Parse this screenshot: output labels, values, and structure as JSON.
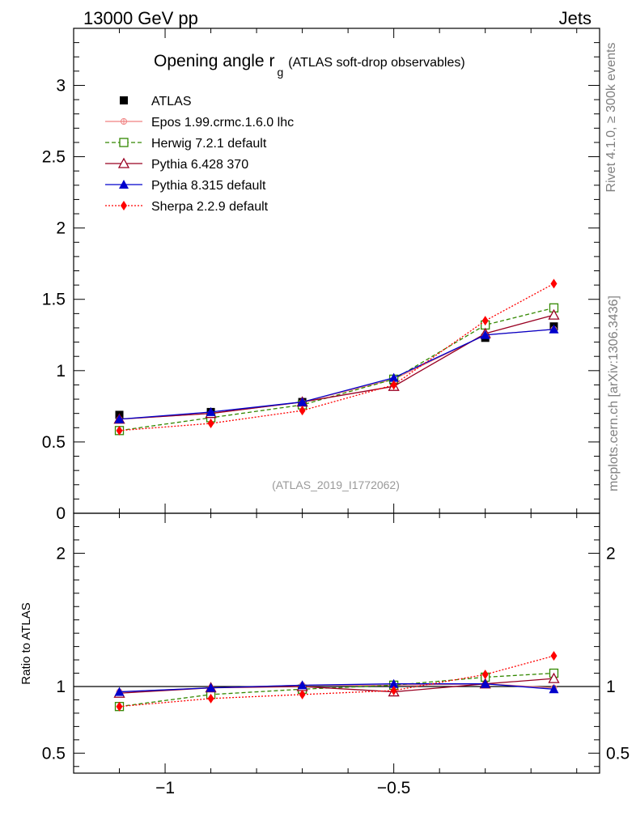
{
  "header": {
    "left": "13000 GeV pp",
    "right": "Jets"
  },
  "side_labels": {
    "rivet": "Rivet 4.1.0, ≥ 300k events",
    "mcplots": "mcplots.cern.ch [arXiv:1306.3436]"
  },
  "chart_data": [
    {
      "id": "main",
      "type": "line",
      "title": "Opening angle r",
      "title_sub": "g",
      "title_extra": "(ATLAS soft-drop observables)",
      "watermark": "(ATLAS_2019_I1772062)",
      "xlim": [
        -1.2,
        -0.05
      ],
      "ylim": [
        0,
        3.4
      ],
      "y_ticks": [
        {
          "value": 0,
          "label": "0"
        },
        {
          "value": 0.5,
          "label": "0.5"
        },
        {
          "value": 1,
          "label": "1"
        },
        {
          "value": 1.5,
          "label": "1.5"
        },
        {
          "value": 2,
          "label": "2"
        },
        {
          "value": 2.5,
          "label": "2.5"
        },
        {
          "value": 3,
          "label": "3"
        }
      ],
      "x": [
        -1.1,
        -0.9,
        -0.7,
        -0.5,
        -0.3,
        -0.15
      ],
      "series": [
        {
          "name": "ATLAS",
          "color": "#000000",
          "marker": "square",
          "line": "none",
          "values": [
            0.69,
            0.71,
            0.78,
            0.93,
            1.23,
            1.31
          ]
        },
        {
          "name": "Epos 1.99.crmc.1.6.0 lhc",
          "color": "#f08080",
          "marker": "cross",
          "line": "solid",
          "values": [
            0.66,
            0.7,
            0.78,
            0.94,
            1.25,
            1.29
          ]
        },
        {
          "name": "Herwig 7.2.1 default",
          "color": "#338800",
          "marker": "open-square",
          "line": "dashed",
          "values": [
            0.58,
            0.67,
            0.76,
            0.94,
            1.32,
            1.44
          ]
        },
        {
          "name": "Pythia 6.428 370",
          "color": "#990022",
          "marker": "open-triangle",
          "line": "solid",
          "values": [
            0.66,
            0.7,
            0.78,
            0.89,
            1.26,
            1.39
          ]
        },
        {
          "name": "Pythia 8.315 default",
          "color": "#0000cc",
          "marker": "triangle",
          "line": "solid",
          "values": [
            0.66,
            0.71,
            0.78,
            0.95,
            1.25,
            1.29
          ]
        },
        {
          "name": "Sherpa 2.2.9 default",
          "color": "#ff0000",
          "marker": "diamond",
          "line": "dotted",
          "values": [
            0.58,
            0.63,
            0.72,
            0.9,
            1.35,
            1.61
          ]
        }
      ]
    },
    {
      "id": "ratio",
      "type": "line",
      "ylabel": "Ratio to ATLAS",
      "xlim": [
        -1.2,
        -0.05
      ],
      "ylim": [
        0.35,
        2.3
      ],
      "x_ticks": [
        {
          "value": -1,
          "label": "−1"
        },
        {
          "value": -0.5,
          "label": "−0.5"
        }
      ],
      "y_ticks": [
        {
          "value": 0.5,
          "label": "0.5"
        },
        {
          "value": 1,
          "label": "1"
        },
        {
          "value": 2,
          "label": "2"
        }
      ],
      "reference": 1,
      "x": [
        -1.1,
        -0.9,
        -0.7,
        -0.5,
        -0.3,
        -0.15
      ],
      "series": [
        {
          "name": "Epos 1.99.crmc.1.6.0 lhc",
          "color": "#f08080",
          "marker": "cross",
          "line": "solid",
          "values": [
            0.96,
            0.99,
            1.01,
            1.01,
            1.02,
            0.99
          ]
        },
        {
          "name": "Herwig 7.2.1 default",
          "color": "#338800",
          "marker": "open-square",
          "line": "dashed",
          "values": [
            0.85,
            0.94,
            0.98,
            1.01,
            1.07,
            1.1
          ]
        },
        {
          "name": "Pythia 6.428 370",
          "color": "#990022",
          "marker": "open-triangle",
          "line": "solid",
          "values": [
            0.95,
            0.99,
            1.0,
            0.96,
            1.02,
            1.06
          ]
        },
        {
          "name": "Pythia 8.315 default",
          "color": "#0000cc",
          "marker": "triangle",
          "line": "solid",
          "values": [
            0.96,
            0.99,
            1.01,
            1.02,
            1.02,
            0.98
          ]
        },
        {
          "name": "Sherpa 2.2.9 default",
          "color": "#ff0000",
          "marker": "diamond",
          "line": "dotted",
          "values": [
            0.85,
            0.91,
            0.94,
            0.97,
            1.09,
            1.23
          ]
        }
      ]
    }
  ]
}
